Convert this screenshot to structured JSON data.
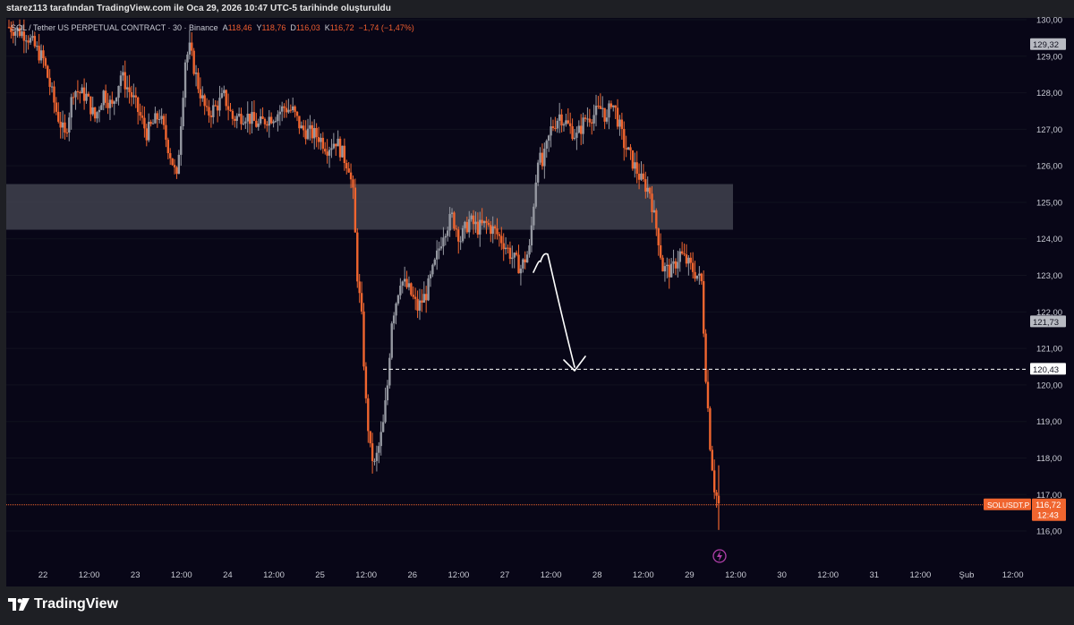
{
  "header": {
    "text": "starez113 tarafından TradingView.com ile Oca 29, 2026 10:47 UTC-5 tarihinde oluşturuldu"
  },
  "symbol_info": {
    "name": "SOL / Tether US PERPETUAL CONTRACT · 30 · Binance",
    "open_label": "A",
    "open_value": "118,46",
    "high_label": "Y",
    "high_value": "118,76",
    "low_label": "D",
    "low_value": "116,03",
    "close_label": "K",
    "close_value": "116,72",
    "change": "−1,74 (−1,47%)"
  },
  "price_axis": {
    "ticks": [
      "130,00",
      "129,00",
      "128,00",
      "127,00",
      "126,00",
      "125,00",
      "124,00",
      "123,00",
      "122,00",
      "121,00",
      "120,00",
      "119,00",
      "118,00",
      "117,00",
      "116,00"
    ],
    "labels": {
      "marker_top": "129,32",
      "marker_mid": "121,73",
      "dashed_level": "120,43",
      "symbol_tag": "SOLUSDT.P",
      "last_price": "116,72",
      "countdown": "12:43"
    }
  },
  "time_axis": {
    "ticks": [
      "22",
      "12:00",
      "23",
      "12:00",
      "24",
      "12:00",
      "25",
      "12:00",
      "26",
      "12:00",
      "27",
      "12:00",
      "28",
      "12:00",
      "29",
      "12:00",
      "30",
      "12:00",
      "31",
      "12:00",
      "Şub",
      "12:00"
    ]
  },
  "footer": {
    "brand": "TradingView"
  },
  "colors": {
    "background": "#080617",
    "up": "#9598a1",
    "down": "#f0652f",
    "zone": "#40424e",
    "last_price": "#f0652f"
  },
  "chart_data": {
    "type": "candlestick",
    "symbol": "SOLUSDT.P",
    "interval": "30",
    "ylim": [
      115.5,
      130.2
    ],
    "zone": [
      124.25,
      125.5
    ],
    "dashed_level": 120.43,
    "last_price": 116.72,
    "path": [
      [
        0,
        129.8
      ],
      [
        4,
        129.6
      ],
      [
        8,
        128.9
      ],
      [
        11,
        127.5
      ],
      [
        13,
        126.8
      ],
      [
        15,
        128.1
      ],
      [
        18,
        127.9
      ],
      [
        20,
        127.3
      ],
      [
        22,
        128.0
      ],
      [
        24,
        127.6
      ],
      [
        26,
        128.5
      ],
      [
        29,
        127.8
      ],
      [
        32,
        126.9
      ],
      [
        35,
        127.4
      ],
      [
        38,
        126.1
      ],
      [
        39,
        125.6
      ],
      [
        41,
        128.9
      ],
      [
        42,
        129.2
      ],
      [
        44,
        128.2
      ],
      [
        46,
        127.4
      ],
      [
        48,
        127.6
      ],
      [
        50,
        127.9
      ],
      [
        52,
        127.3
      ],
      [
        55,
        127.4
      ],
      [
        58,
        127.1
      ],
      [
        60,
        127.3
      ],
      [
        62,
        127.4
      ],
      [
        64,
        127.6
      ],
      [
        66,
        127.5
      ],
      [
        68,
        127.0
      ],
      [
        70,
        126.9
      ],
      [
        72,
        126.8
      ],
      [
        74,
        126.5
      ],
      [
        76,
        126.7
      ],
      [
        78,
        126.2
      ],
      [
        79,
        126.0
      ],
      [
        80,
        125.2
      ],
      [
        81,
        123.0
      ],
      [
        82,
        121.8
      ],
      [
        83,
        119.5
      ],
      [
        84,
        118.2
      ],
      [
        85,
        117.8
      ],
      [
        86,
        118.3
      ],
      [
        87,
        118.9
      ],
      [
        88,
        120.0
      ],
      [
        89,
        121.8
      ],
      [
        90,
        122.3
      ],
      [
        91,
        122.9
      ],
      [
        93,
        122.6
      ],
      [
        95,
        122.1
      ],
      [
        97,
        122.5
      ],
      [
        99,
        123.3
      ],
      [
        101,
        124.2
      ],
      [
        103,
        124.6
      ],
      [
        105,
        124.0
      ],
      [
        107,
        124.5
      ],
      [
        109,
        124.3
      ],
      [
        111,
        124.4
      ],
      [
        113,
        124.2
      ],
      [
        115,
        123.9
      ],
      [
        117,
        123.5
      ],
      [
        119,
        123.2
      ],
      [
        121,
        123.7
      ],
      [
        122,
        125.0
      ],
      [
        123,
        126.3
      ],
      [
        124,
        126.0
      ],
      [
        126,
        127.0
      ],
      [
        128,
        127.4
      ],
      [
        130,
        127.1
      ],
      [
        132,
        126.8
      ],
      [
        134,
        127.3
      ],
      [
        136,
        127.4
      ],
      [
        138,
        127.6
      ],
      [
        139,
        127.2
      ],
      [
        140,
        127.8
      ],
      [
        141,
        127.5
      ],
      [
        143,
        126.6
      ],
      [
        145,
        126.1
      ],
      [
        147,
        125.6
      ],
      [
        149,
        125.3
      ],
      [
        150,
        124.6
      ],
      [
        151,
        124.0
      ],
      [
        152,
        123.2
      ],
      [
        154,
        123.1
      ],
      [
        156,
        123.6
      ],
      [
        158,
        123.3
      ],
      [
        160,
        123.0
      ],
      [
        161,
        122.8
      ],
      [
        162,
        120.3
      ],
      [
        163,
        118.4
      ],
      [
        164,
        117.2
      ],
      [
        165,
        116.72
      ]
    ],
    "x_last_index": 165
  }
}
